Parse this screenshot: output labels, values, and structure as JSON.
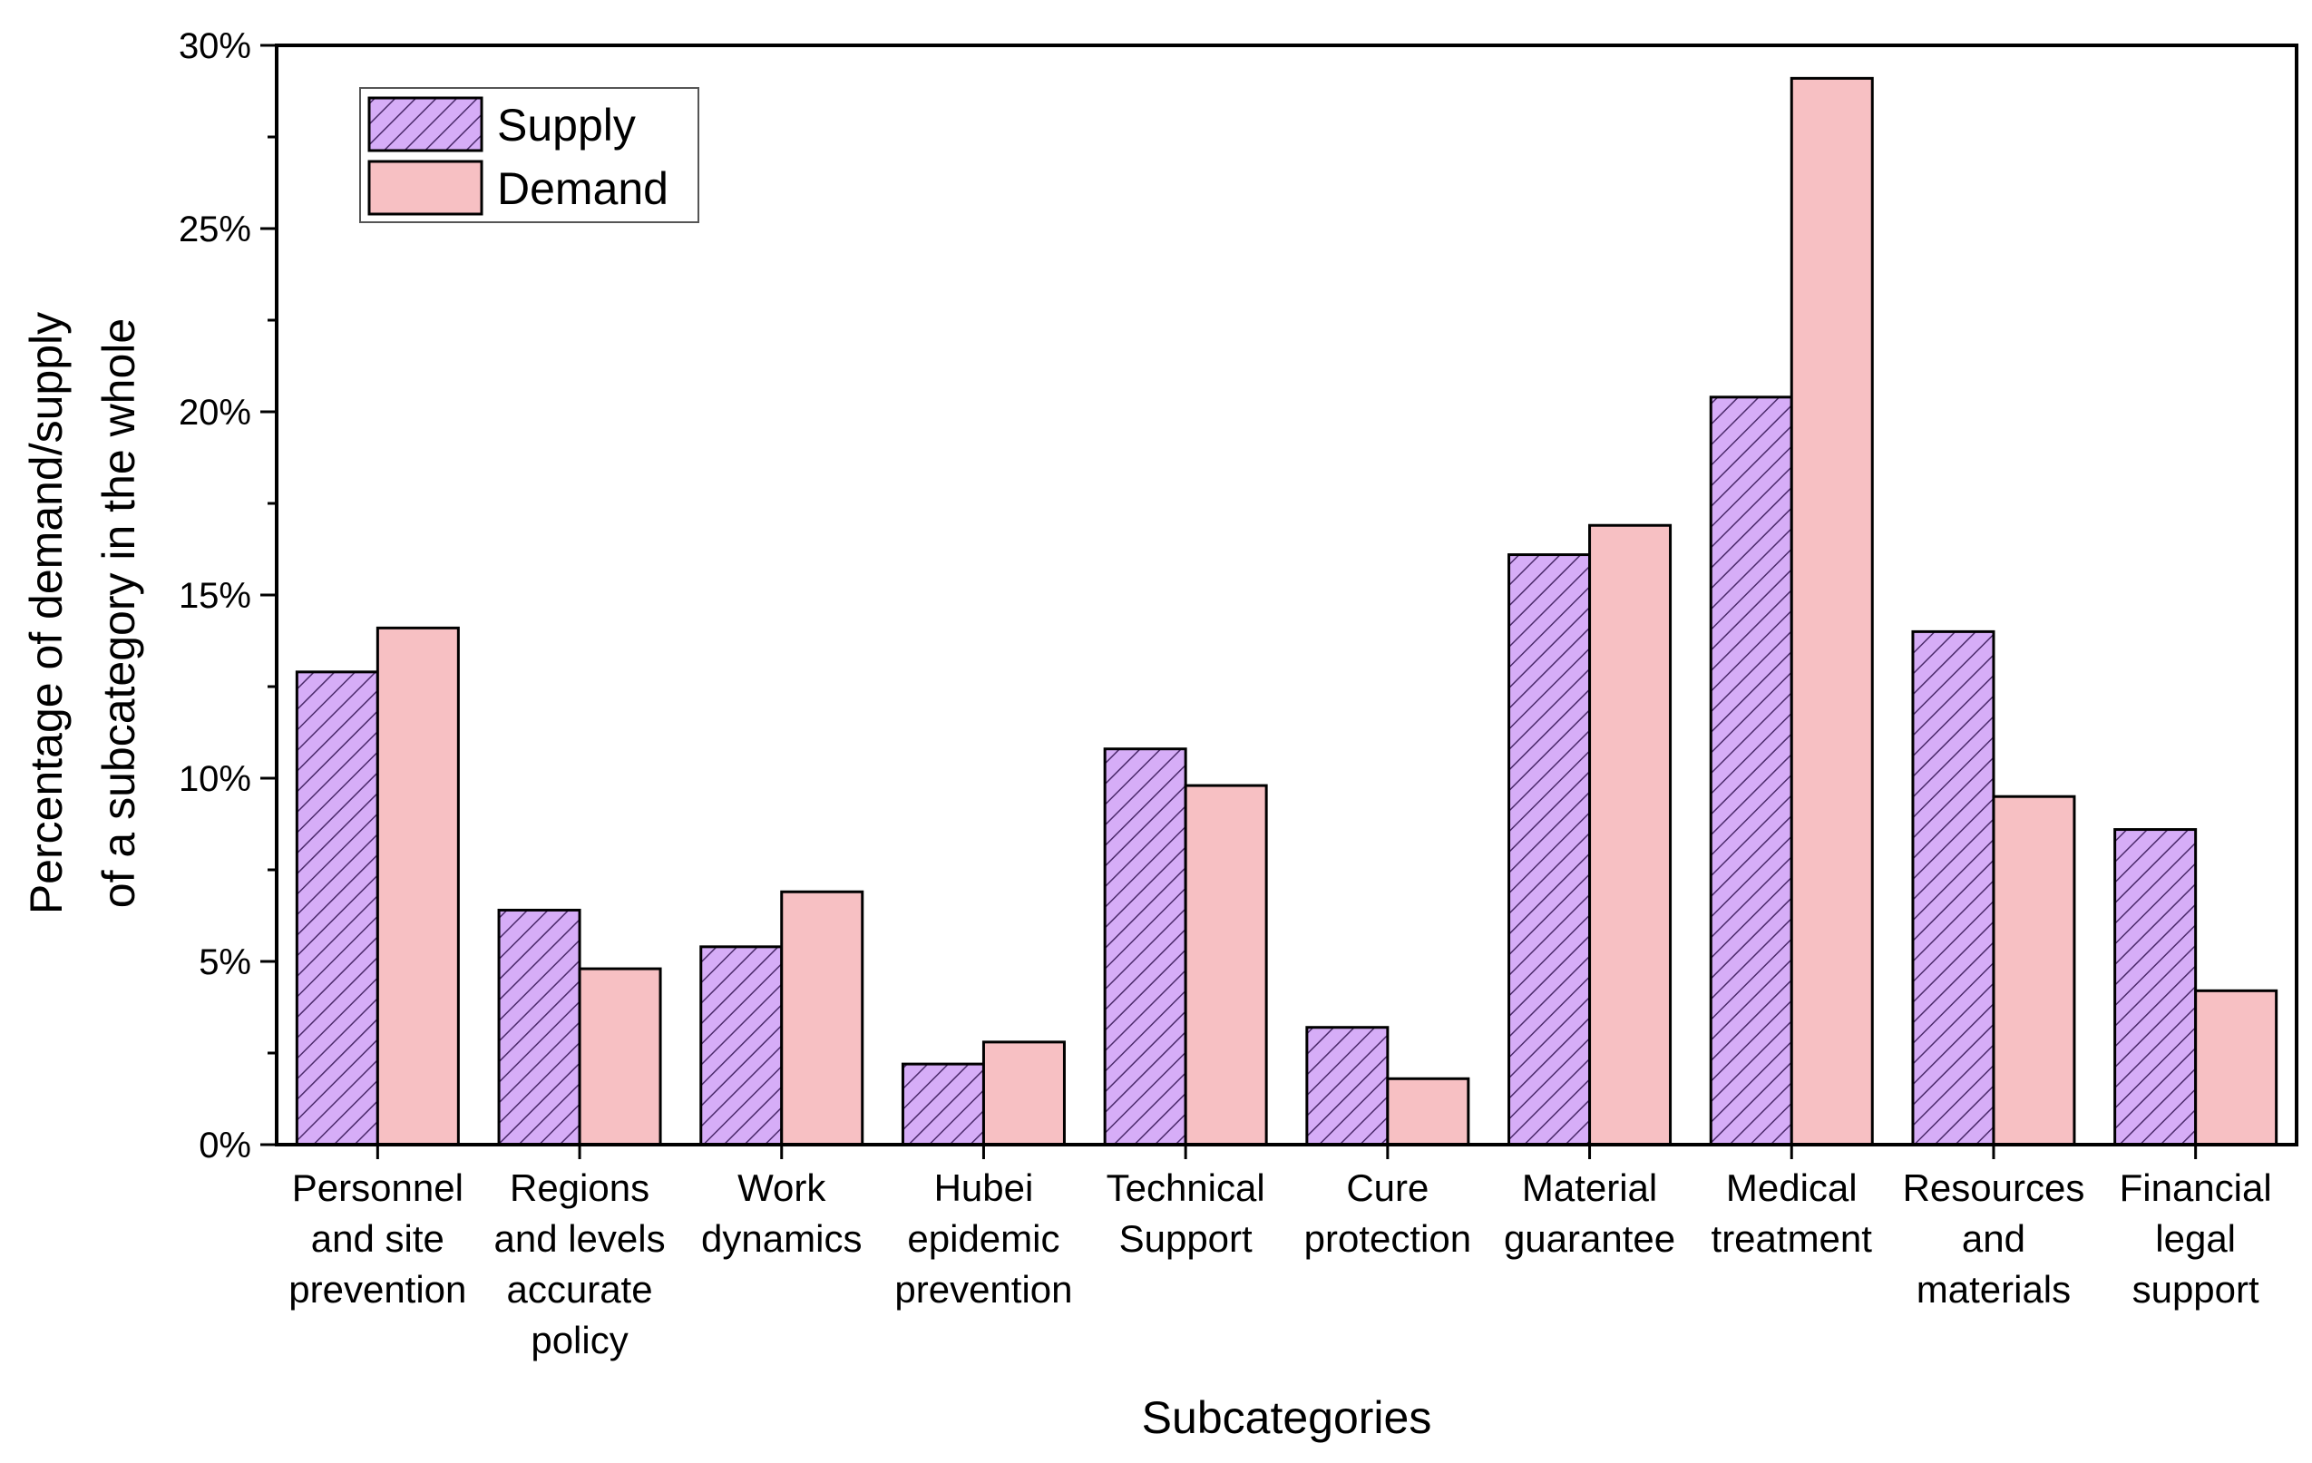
{
  "chart_data": {
    "type": "bar",
    "title": "",
    "xlabel": "Subcategories",
    "ylabel": [
      "Percentage of demand/supply",
      "of a subcategory in the whole"
    ],
    "ylim": [
      0,
      30
    ],
    "yticks": [
      0,
      5,
      10,
      15,
      20,
      25,
      30
    ],
    "ytick_labels": [
      "0%",
      "5%",
      "10%",
      "15%",
      "20%",
      "25%",
      "30%"
    ],
    "categories": [
      [
        "Personnel",
        "and site",
        "prevention"
      ],
      [
        "Regions",
        "and levels",
        "accurate",
        "policy"
      ],
      [
        "Work",
        "dynamics"
      ],
      [
        "Hubei",
        "epidemic",
        "prevention"
      ],
      [
        "Technical",
        "Support"
      ],
      [
        "Cure",
        "protection"
      ],
      [
        "Material",
        "guarantee"
      ],
      [
        "Medical",
        "treatment"
      ],
      [
        "Resources",
        "and",
        "materials"
      ],
      [
        "Financial",
        "legal",
        "support"
      ]
    ],
    "series": [
      {
        "name": "Supply",
        "values": [
          12.9,
          6.4,
          5.4,
          2.2,
          10.8,
          3.2,
          16.1,
          20.4,
          14.0,
          8.6
        ],
        "color": "#d6adf7",
        "pattern": "diagonal-hatch"
      },
      {
        "name": "Demand",
        "values": [
          14.1,
          4.8,
          6.9,
          2.8,
          9.8,
          1.8,
          16.9,
          29.1,
          9.5,
          4.2
        ],
        "color": "#f7c0c3",
        "pattern": "none"
      }
    ],
    "legend_position": "top-left",
    "grid": false
  }
}
